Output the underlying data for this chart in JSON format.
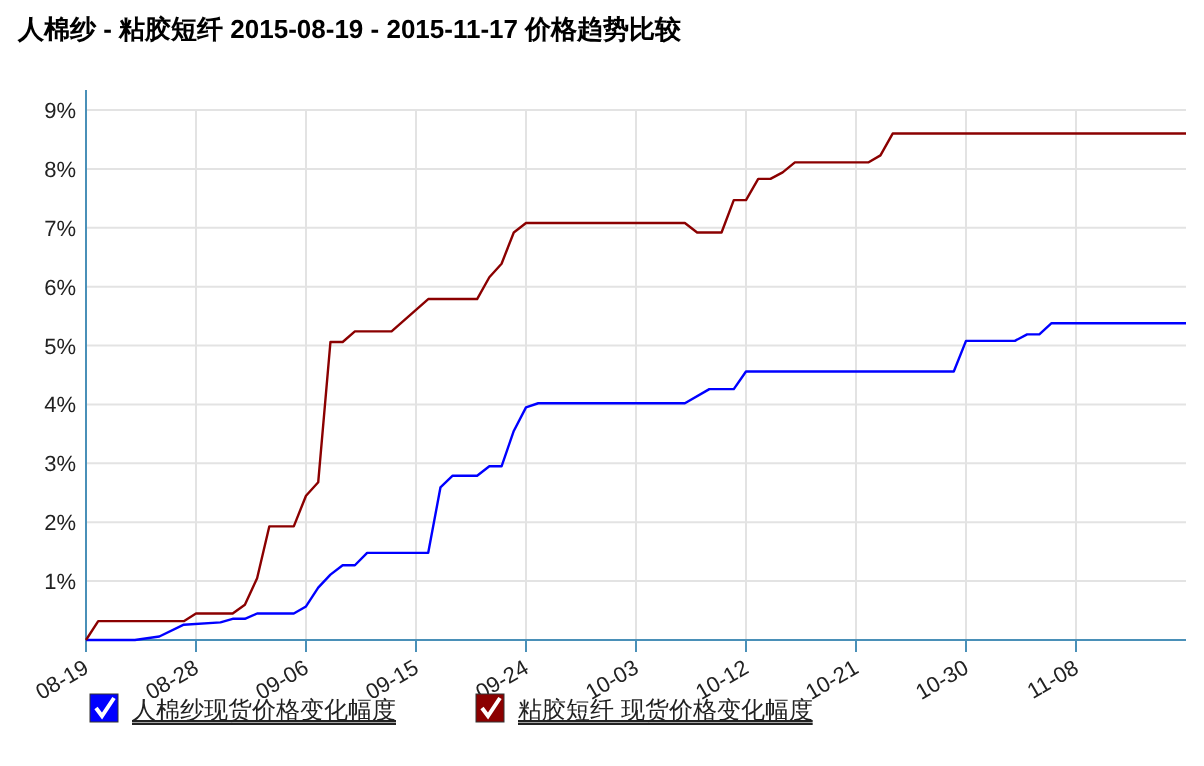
{
  "chart_data": {
    "type": "line",
    "title": "人棉纱 - 粘胶短纤 2015-08-19 - 2015-11-17 价格趋势比较",
    "xlim": [
      "2015-08-19",
      "2015-11-17"
    ],
    "xticks": [
      {
        "value": "2015-08-19",
        "label": "08-19"
      },
      {
        "value": "2015-08-28",
        "label": "08-28"
      },
      {
        "value": "2015-09-06",
        "label": "09-06"
      },
      {
        "value": "2015-09-15",
        "label": "09-15"
      },
      {
        "value": "2015-09-24",
        "label": "09-24"
      },
      {
        "value": "2015-10-03",
        "label": "10-03"
      },
      {
        "value": "2015-10-12",
        "label": "10-12"
      },
      {
        "value": "2015-10-21",
        "label": "10-21"
      },
      {
        "value": "2015-10-30",
        "label": "10-30"
      },
      {
        "value": "2015-11-08",
        "label": "11-08"
      }
    ],
    "ylim": [
      0,
      9
    ],
    "yticks": [
      {
        "value": 0,
        "label": null
      },
      {
        "value": 1,
        "label": "1%"
      },
      {
        "value": 2,
        "label": "2%"
      },
      {
        "value": 3,
        "label": "3%"
      },
      {
        "value": 4,
        "label": "4%"
      },
      {
        "value": 5,
        "label": "5%"
      },
      {
        "value": 6,
        "label": "6%"
      },
      {
        "value": 7,
        "label": "7%"
      },
      {
        "value": 8,
        "label": "8%"
      },
      {
        "value": 9,
        "label": "9%"
      }
    ],
    "grid": true,
    "legend": "bottom",
    "marker": "none",
    "line_style": "solid",
    "series": [
      {
        "name": "人棉纱现货价格变化幅度",
        "color": "#0000ff",
        "x": [
          "2015-08-19",
          "2015-08-23",
          "2015-08-25",
          "2015-08-27",
          "2015-08-30",
          "2015-08-31",
          "2015-09-01",
          "2015-09-02",
          "2015-09-05",
          "2015-09-06",
          "2015-09-07",
          "2015-09-08",
          "2015-09-09",
          "2015-09-10",
          "2015-09-11",
          "2015-09-16",
          "2015-09-17",
          "2015-09-18",
          "2015-09-20",
          "2015-09-21",
          "2015-09-22",
          "2015-09-23",
          "2015-09-24",
          "2015-09-25",
          "2015-10-07",
          "2015-10-09",
          "2015-10-11",
          "2015-10-12",
          "2015-10-29",
          "2015-10-30",
          "2015-11-03",
          "2015-11-04",
          "2015-11-05",
          "2015-11-06",
          "2015-11-17"
        ],
        "values": [
          0,
          0,
          0.06,
          0.26,
          0.3,
          0.36,
          0.36,
          0.45,
          0.45,
          0.57,
          0.89,
          1.11,
          1.27,
          1.27,
          1.48,
          1.48,
          2.59,
          2.79,
          2.79,
          2.95,
          2.95,
          3.55,
          3.95,
          4.02,
          4.02,
          4.26,
          4.26,
          4.56,
          4.56,
          5.08,
          5.08,
          5.19,
          5.19,
          5.38,
          5.38
        ]
      },
      {
        "name": "粘胶短纤 现货价格变化幅度",
        "color": "#8b0000",
        "x": [
          "2015-08-19",
          "2015-08-20",
          "2015-08-27",
          "2015-08-28",
          "2015-08-31",
          "2015-09-01",
          "2015-09-02",
          "2015-09-03",
          "2015-09-05",
          "2015-09-06",
          "2015-09-07",
          "2015-09-08",
          "2015-09-09",
          "2015-09-10",
          "2015-09-13",
          "2015-09-16",
          "2015-09-20",
          "2015-09-21",
          "2015-09-22",
          "2015-09-23",
          "2015-09-24",
          "2015-10-07",
          "2015-10-08",
          "2015-10-10",
          "2015-10-11",
          "2015-10-12",
          "2015-10-13",
          "2015-10-14",
          "2015-10-15",
          "2015-10-16",
          "2015-10-22",
          "2015-10-23",
          "2015-10-24",
          "2015-11-17"
        ],
        "values": [
          0,
          0.32,
          0.32,
          0.45,
          0.45,
          0.6,
          1.05,
          1.93,
          1.93,
          2.45,
          2.68,
          5.06,
          5.06,
          5.24,
          5.24,
          5.79,
          5.79,
          6.16,
          6.39,
          6.92,
          7.08,
          7.08,
          6.92,
          6.92,
          7.47,
          7.47,
          7.83,
          7.83,
          7.94,
          8.11,
          8.11,
          8.23,
          8.6,
          8.6
        ]
      }
    ]
  }
}
